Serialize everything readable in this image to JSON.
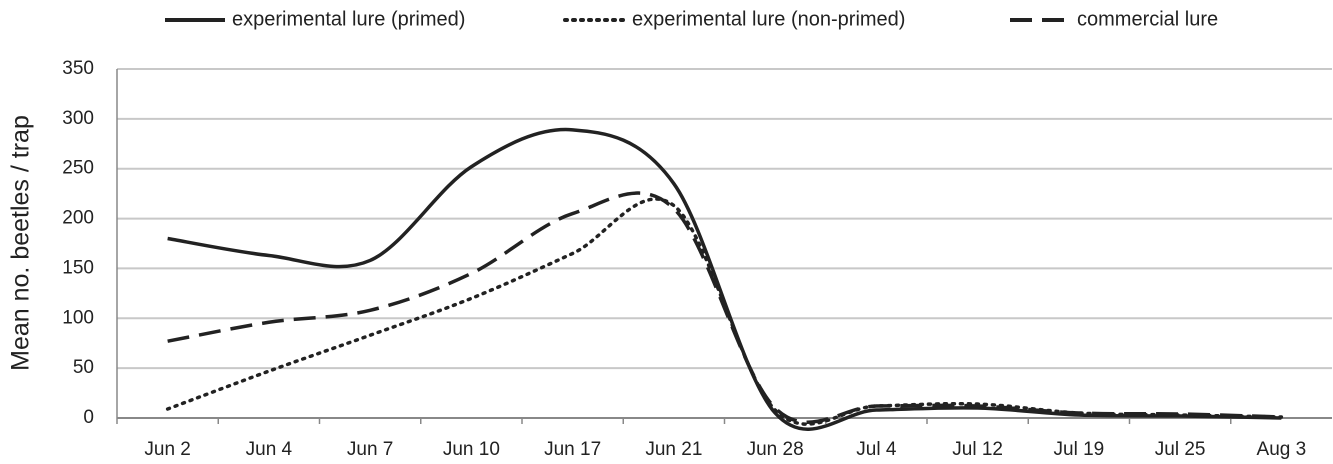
{
  "chart_data": {
    "type": "line",
    "y_label": "Mean no. beetles / trap",
    "categories": [
      "Jun 2",
      "Jun 4",
      "Jun 7",
      "Jun 10",
      "Jun 17",
      "Jun 21",
      "Jun 28",
      "Jul 4",
      "Jul 12",
      "Jul 19",
      "Jul 25",
      "Aug 3"
    ],
    "series": [
      {
        "name": "experimental lure (primed)",
        "color": "#222222",
        "style": "solid",
        "values": [
          180,
          163,
          158,
          252,
          289,
          235,
          5,
          8,
          10,
          3,
          2,
          0
        ]
      },
      {
        "name": "experimental lure (non-primed)",
        "color": "#222222",
        "style": "dotted",
        "values": [
          9,
          47,
          83,
          120,
          165,
          213,
          8,
          12,
          14,
          5,
          3,
          1
        ]
      },
      {
        "name": "commercial lure",
        "color": "#222222",
        "style": "dashed",
        "values": [
          77,
          96,
          108,
          145,
          205,
          210,
          10,
          12,
          12,
          5,
          4,
          1
        ]
      }
    ],
    "ylim": [
      0,
      350
    ],
    "yticks": [
      0,
      50,
      100,
      150,
      200,
      250,
      300,
      350
    ],
    "grid": true,
    "legend": "top"
  }
}
